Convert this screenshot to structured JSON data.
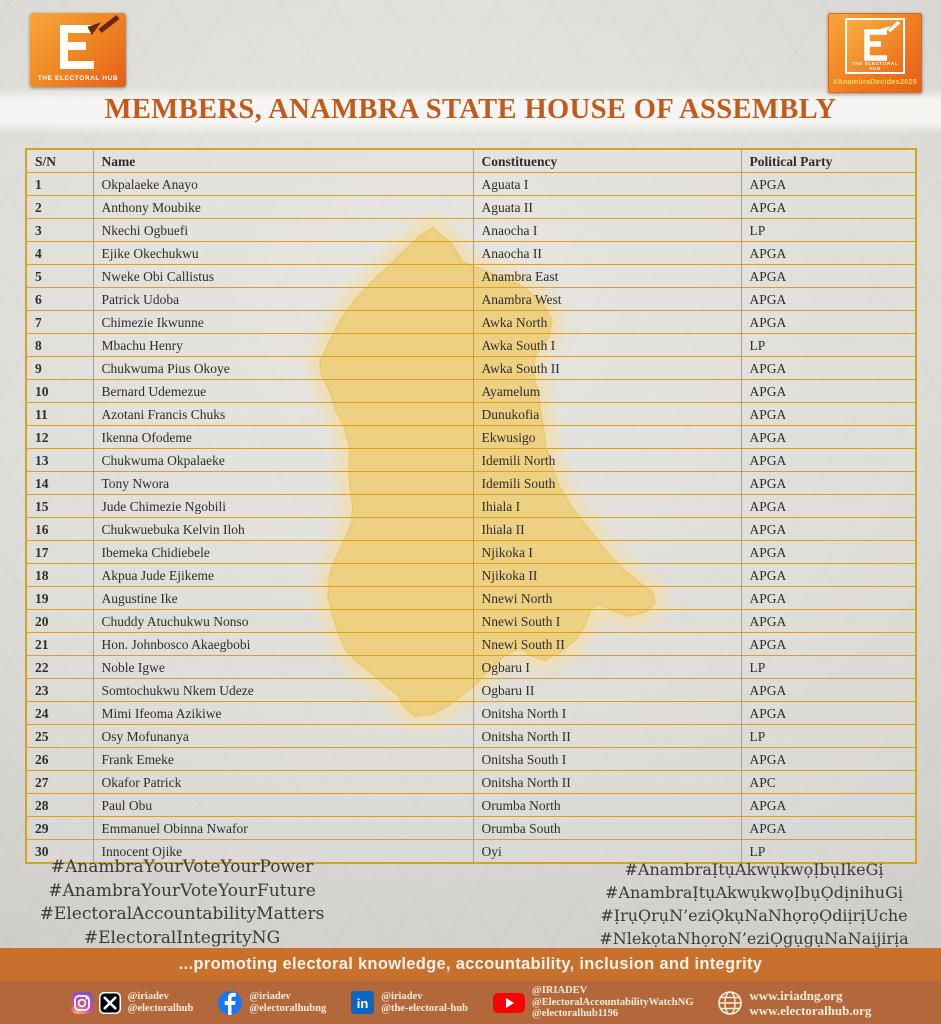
{
  "page": {
    "title": "MEMBERS, ANAMBRA STATE HOUSE OF ASSEMBLY"
  },
  "logos": {
    "left": {
      "wordmark": "THE ELECTORAL HUB"
    },
    "right": {
      "wordmark": "THE ELECTORAL HUB",
      "tag": "#AnambraDecides2025"
    }
  },
  "table": {
    "headers": {
      "sn": "S/N",
      "name": "Name",
      "constituency": "Constituency",
      "party": "Political Party"
    },
    "rows": [
      {
        "sn": "1",
        "name": "Okpalaeke Anayo",
        "constituency": "Aguata I",
        "party": "APGA"
      },
      {
        "sn": "2",
        "name": "Anthony Moubike",
        "constituency": "Aguata II",
        "party": "APGA"
      },
      {
        "sn": "3",
        "name": "Nkechi Ogbuefi",
        "constituency": "Anaocha I",
        "party": "LP"
      },
      {
        "sn": "4",
        "name": "Ejike Okechukwu",
        "constituency": "Anaocha II",
        "party": "APGA"
      },
      {
        "sn": "5",
        "name": "Nweke Obi Callistus",
        "constituency": "Anambra East",
        "party": "APGA"
      },
      {
        "sn": "6",
        "name": "Patrick Udoba",
        "constituency": "Anambra West",
        "party": "APGA"
      },
      {
        "sn": "7",
        "name": "Chimezie Ikwunne",
        "constituency": "Awka North",
        "party": "APGA"
      },
      {
        "sn": "8",
        "name": "Mbachu Henry",
        "constituency": "Awka South I",
        "party": "LP"
      },
      {
        "sn": "9",
        "name": "Chukwuma Pius Okoye",
        "constituency": "Awka South II",
        "party": "APGA"
      },
      {
        "sn": "10",
        "name": "Bernard Udemezue",
        "constituency": "Ayamelum",
        "party": "APGA"
      },
      {
        "sn": "11",
        "name": "Azotani Francis Chuks",
        "constituency": "Dunukofia",
        "party": "APGA"
      },
      {
        "sn": "12",
        "name": "Ikenna Ofodeme",
        "constituency": "Ekwusigo",
        "party": "APGA"
      },
      {
        "sn": "13",
        "name": "Chukwuma Okpalaeke",
        "constituency": "Idemili North",
        "party": "APGA"
      },
      {
        "sn": "14",
        "name": "Tony Nwora",
        "constituency": "Idemili South",
        "party": "APGA"
      },
      {
        "sn": "15",
        "name": "Jude Chimezie Ngobili",
        "constituency": "Ihiala I",
        "party": "APGA"
      },
      {
        "sn": "16",
        "name": "Chukwuebuka Kelvin Iloh",
        "constituency": "Ihiala II",
        "party": "APGA"
      },
      {
        "sn": "17",
        "name": "Ibemeka Chidiebele",
        "constituency": "Njikoka I",
        "party": "APGA"
      },
      {
        "sn": "18",
        "name": "Akpua Jude Ejikeme",
        "constituency": "Njikoka II",
        "party": "APGA"
      },
      {
        "sn": "19",
        "name": "Augustine Ike",
        "constituency": " Nnewi North",
        "party": "APGA"
      },
      {
        "sn": "20",
        "name": "Chuddy Atuchukwu Nonso",
        "constituency": "Nnewi South I",
        "party": "APGA"
      },
      {
        "sn": "21",
        "name": "Hon. Johnbosco Akaegbobi",
        "constituency": "Nnewi South II",
        "party": "APGA"
      },
      {
        "sn": "22",
        "name": "Noble Igwe",
        "constituency": "Ogbaru I",
        "party": "LP"
      },
      {
        "sn": "23",
        "name": "Somtochukwu Nkem Udeze",
        "constituency": "Ogbaru II",
        "party": "APGA"
      },
      {
        "sn": "24",
        "name": "Mimi Ifeoma Azikiwe",
        "constituency": "Onitsha North I",
        "party": "APGA"
      },
      {
        "sn": "25",
        "name": "Osy Mofunanya",
        "constituency": "Onitsha North II",
        "party": "LP"
      },
      {
        "sn": "26",
        "name": "Frank Emeke",
        "constituency": "Onitsha South I",
        "party": "APGA"
      },
      {
        "sn": "27",
        "name": "Okafor Patrick",
        "constituency": "Onitsha North II",
        "party": "APC"
      },
      {
        "sn": "28",
        "name": "Paul Obu",
        "constituency": "Orumba North",
        "party": "APGA"
      },
      {
        "sn": "29",
        "name": "Emmanuel Obinna Nwafor",
        "constituency": "Orumba South",
        "party": "APGA"
      },
      {
        "sn": "30",
        "name": "Innocent Ojike",
        "constituency": "Oyi",
        "party": "LP"
      }
    ]
  },
  "hashtags": {
    "left": [
      "#AnambraYourVoteYourPower",
      "#AnambraYourVoteYourFuture",
      "#ElectoralAccountabilityMatters",
      "#ElectoralIntegrityNG"
    ],
    "right": [
      "#AnambraỊtụAkwụkwọỊbụIkeGị",
      "#AnambraỊtụAkwụkwọỊbụỌdịnihuGị",
      "#ỊrụỌrụN’eziỌkụNaNhọrọỌdiịrịUche",
      "#NlekọtaNhọrọN’eziỌgụgụNaNaijirịa"
    ]
  },
  "footer": {
    "tagline": "...promoting electoral knowledge, accountability, inclusion and integrity",
    "social": [
      {
        "platforms": "instagram,x",
        "handles": [
          "@iriadev",
          "@electoralhub"
        ]
      },
      {
        "platforms": "facebook",
        "handles": [
          "@iriadev",
          "@electoralhubng"
        ]
      },
      {
        "platforms": "linkedin",
        "handles": [
          "@iriadev",
          "@the-electoral-hub"
        ]
      },
      {
        "platforms": "youtube",
        "handles": [
          "@IRIADEV",
          "@ElectoralAccountabilityWatchNG",
          "@electoralhub1196"
        ]
      },
      {
        "platforms": "website",
        "handles": [
          "www.iriadng.org",
          "www.electoralhub.org"
        ]
      }
    ]
  },
  "colors": {
    "accent_orange": "#e6651a",
    "title_orange": "#c25a1c",
    "table_border_gold": "#d9a11d",
    "map_yellow": "#f7c440",
    "tagline_band": "#c8702d",
    "social_bar": "#b2683a"
  }
}
